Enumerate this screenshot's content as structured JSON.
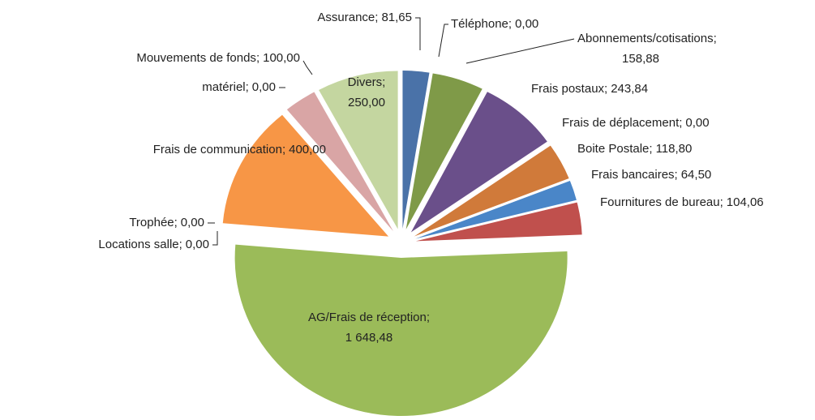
{
  "chart_data": {
    "type": "pie",
    "separator": ";",
    "categories": [
      "Assurance",
      "Téléphone",
      "Abonnements/cotisations",
      "Frais postaux",
      "Frais de déplacement",
      "Boite Postale",
      "Frais bancaires",
      "Fournitures de bureau",
      "AG/Frais de réception",
      "Locations salle",
      "Trophée",
      "Frais de communication",
      "matériel",
      "Mouvements de fonds",
      "Divers"
    ],
    "values": [
      81.65,
      0,
      158.88,
      243.84,
      0,
      118.8,
      64.5,
      104.06,
      1648.48,
      0,
      0,
      400,
      0,
      100,
      250
    ],
    "value_labels": [
      "81,65",
      "0,00",
      "158,88",
      "243,84",
      "0,00",
      "118,80",
      "64,50",
      "104,06",
      "1 648,48",
      "0,00",
      "0,00",
      "400,00",
      "0,00",
      "100,00",
      "250,00"
    ],
    "colors": [
      "#4a72a8",
      "#4a72a8",
      "#7f9a48",
      "#6a4f8a",
      "#6a4f8a",
      "#d07a3a",
      "#4a86c8",
      "#c0504d",
      "#9bbb59",
      "#9bbb59",
      "#f79646",
      "#f79646",
      "#d9a5a5",
      "#d9a5a5",
      "#c4d6a0"
    ]
  }
}
